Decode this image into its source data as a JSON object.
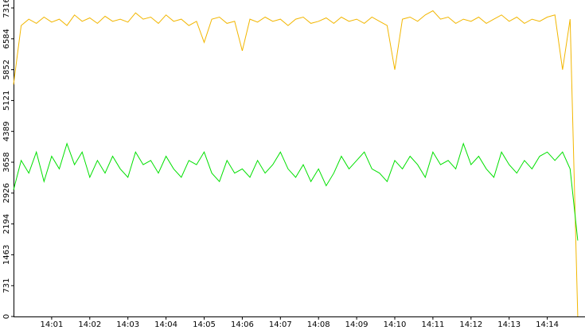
{
  "chart_data": {
    "type": "line",
    "categories": [
      null,
      null,
      null,
      null,
      null,
      "14:01",
      null,
      null,
      null,
      null,
      "14:02",
      null,
      null,
      null,
      null,
      "14:03",
      null,
      null,
      null,
      null,
      "14:04",
      null,
      null,
      null,
      null,
      "14:05",
      null,
      null,
      null,
      null,
      "14:06",
      null,
      null,
      null,
      null,
      "14:07",
      null,
      null,
      null,
      null,
      "14:08",
      null,
      null,
      null,
      null,
      "14:09",
      null,
      null,
      null,
      null,
      "14:10",
      null,
      null,
      null,
      null,
      "14:11",
      null,
      null,
      null,
      null,
      "14:12",
      null,
      null,
      null,
      null,
      "14:13",
      null,
      null,
      null,
      null,
      "14:14",
      null,
      null,
      null,
      null
    ],
    "series": [
      {
        "color": "#f2b600",
        "values": [
          5500,
          6900,
          7050,
          6950,
          7100,
          6980,
          7050,
          6900,
          7150,
          7000,
          7080,
          6950,
          7120,
          7000,
          7050,
          6980,
          7200,
          7050,
          7100,
          6950,
          7150,
          7000,
          7050,
          6900,
          7000,
          6500,
          7050,
          7100,
          6950,
          7000,
          6300,
          7050,
          6980,
          7100,
          7000,
          7050,
          6900,
          7050,
          7100,
          6950,
          7000,
          7080,
          6950,
          7100,
          7000,
          7050,
          6950,
          7100,
          7000,
          6900,
          5850,
          7050,
          7100,
          7000,
          7150,
          7250,
          7050,
          7100,
          6950,
          7050,
          7000,
          7100,
          6950,
          7050,
          7150,
          7000,
          7100,
          6950,
          7050,
          7000,
          7100,
          7150,
          5850,
          7050,
          0
        ]
      },
      {
        "color": "#00e000",
        "values": [
          3000,
          3700,
          3400,
          3900,
          3200,
          3800,
          3500,
          4100,
          3600,
          3900,
          3300,
          3700,
          3400,
          3800,
          3500,
          3300,
          3900,
          3600,
          3700,
          3400,
          3800,
          3500,
          3300,
          3700,
          3600,
          3900,
          3400,
          3200,
          3700,
          3400,
          3500,
          3300,
          3700,
          3400,
          3600,
          3900,
          3500,
          3300,
          3600,
          3200,
          3500,
          3100,
          3400,
          3800,
          3500,
          3700,
          3900,
          3500,
          3400,
          3200,
          3700,
          3500,
          3800,
          3600,
          3300,
          3900,
          3600,
          3700,
          3500,
          4100,
          3600,
          3800,
          3500,
          3300,
          3900,
          3600,
          3400,
          3700,
          3500,
          3800,
          3900,
          3700,
          3900,
          3500,
          1800
        ]
      }
    ],
    "ylim": [
      0,
      7316
    ],
    "yticks": [
      0,
      731,
      1463,
      2194,
      2926,
      3658,
      4389,
      5121,
      5852,
      6584,
      7316
    ]
  }
}
